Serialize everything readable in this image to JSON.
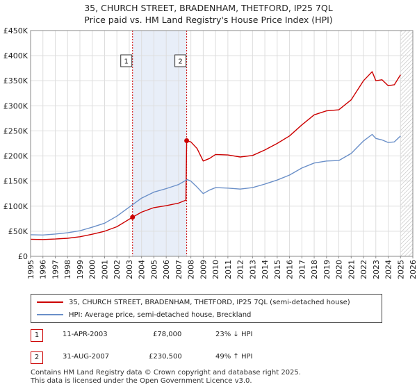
{
  "title_line1": "35, CHURCH STREET, BRADENHAM, THETFORD, IP25 7QL",
  "title_line2": "Price paid vs. HM Land Registry's House Price Index (HPI)",
  "legend": {
    "red_label": "35, CHURCH STREET, BRADENHAM, THETFORD, IP25 7QL (semi-detached house)",
    "blue_label": "HPI: Average price, semi-detached house, Breckland"
  },
  "transactions": [
    {
      "num": "1",
      "date": "11-APR-2003",
      "price": "£78,000",
      "hpi": "23% ↓ HPI"
    },
    {
      "num": "2",
      "date": "31-AUG-2007",
      "price": "£230,500",
      "hpi": "49% ↑ HPI"
    }
  ],
  "footer_line1": "Contains HM Land Registry data © Crown copyright and database right 2025.",
  "footer_line2": "This data is licensed under the Open Government Licence v3.0.",
  "colors": {
    "red": "#cc0000",
    "blue": "#6a8fc8",
    "shade": "#e8eef8",
    "grid": "#dddddd"
  },
  "chart_data": {
    "type": "line",
    "ylim": [
      0,
      450000
    ],
    "xlim": [
      1995,
      2026
    ],
    "y_ticks": [
      0,
      50000,
      100000,
      150000,
      200000,
      250000,
      300000,
      350000,
      400000,
      450000
    ],
    "y_tick_labels": [
      "£0",
      "£50K",
      "£100K",
      "£150K",
      "£200K",
      "£250K",
      "£300K",
      "£350K",
      "£400K",
      "£450K"
    ],
    "x_ticks": [
      "1995",
      "1996",
      "1997",
      "1998",
      "1999",
      "2000",
      "2001",
      "2002",
      "2003",
      "2004",
      "2005",
      "2006",
      "2007",
      "2008",
      "2009",
      "2010",
      "2011",
      "2012",
      "2013",
      "2014",
      "2015",
      "2016",
      "2017",
      "2018",
      "2019",
      "2020",
      "2021",
      "2022",
      "2023",
      "2024",
      "2025",
      "2026"
    ],
    "shaded_region": [
      2003.27,
      2007.66
    ],
    "hatched_from": 2025.0,
    "markers": [
      {
        "label": "1",
        "x": 2003.27,
        "y": 78000
      },
      {
        "label": "2",
        "x": 2007.66,
        "y": 230500
      }
    ],
    "series": [
      {
        "name": "35, CHURCH STREET, BRADENHAM, THETFORD, IP25 7QL (semi-detached house)",
        "color": "#cc0000",
        "points": [
          [
            1995.0,
            34000
          ],
          [
            1996.0,
            33500
          ],
          [
            1997.0,
            34500
          ],
          [
            1998.0,
            36000
          ],
          [
            1999.0,
            39000
          ],
          [
            2000.0,
            44000
          ],
          [
            2001.0,
            50000
          ],
          [
            2002.0,
            59000
          ],
          [
            2003.27,
            78000
          ],
          [
            2004.0,
            88000
          ],
          [
            2005.0,
            97000
          ],
          [
            2006.0,
            101000
          ],
          [
            2007.0,
            106000
          ],
          [
            2007.6,
            112000
          ],
          [
            2007.66,
            230500
          ],
          [
            2008.0,
            228000
          ],
          [
            2008.5,
            215000
          ],
          [
            2009.0,
            190000
          ],
          [
            2009.5,
            195000
          ],
          [
            2010.0,
            203000
          ],
          [
            2011.0,
            202000
          ],
          [
            2012.0,
            198000
          ],
          [
            2013.0,
            201000
          ],
          [
            2014.0,
            212000
          ],
          [
            2015.0,
            225000
          ],
          [
            2016.0,
            240000
          ],
          [
            2017.0,
            262000
          ],
          [
            2018.0,
            282000
          ],
          [
            2019.0,
            290000
          ],
          [
            2020.0,
            292000
          ],
          [
            2021.0,
            312000
          ],
          [
            2022.0,
            350000
          ],
          [
            2022.7,
            368000
          ],
          [
            2023.0,
            350000
          ],
          [
            2023.5,
            352000
          ],
          [
            2024.0,
            340000
          ],
          [
            2024.5,
            342000
          ],
          [
            2025.0,
            362000
          ]
        ]
      },
      {
        "name": "HPI: Average price, semi-detached house, Breckland",
        "color": "#6a8fc8",
        "points": [
          [
            1995.0,
            43000
          ],
          [
            1996.0,
            42500
          ],
          [
            1997.0,
            44500
          ],
          [
            1998.0,
            47000
          ],
          [
            1999.0,
            51000
          ],
          [
            2000.0,
            58000
          ],
          [
            2001.0,
            66000
          ],
          [
            2002.0,
            80000
          ],
          [
            2003.0,
            98000
          ],
          [
            2004.0,
            116000
          ],
          [
            2005.0,
            128000
          ],
          [
            2006.0,
            135000
          ],
          [
            2007.0,
            143000
          ],
          [
            2007.7,
            153000
          ],
          [
            2008.0,
            150000
          ],
          [
            2008.5,
            138000
          ],
          [
            2009.0,
            125000
          ],
          [
            2009.5,
            132000
          ],
          [
            2010.0,
            137000
          ],
          [
            2011.0,
            136000
          ],
          [
            2012.0,
            134000
          ],
          [
            2013.0,
            137000
          ],
          [
            2014.0,
            144000
          ],
          [
            2015.0,
            152000
          ],
          [
            2016.0,
            162000
          ],
          [
            2017.0,
            176000
          ],
          [
            2018.0,
            186000
          ],
          [
            2019.0,
            190000
          ],
          [
            2020.0,
            191000
          ],
          [
            2021.0,
            205000
          ],
          [
            2022.0,
            230000
          ],
          [
            2022.7,
            243000
          ],
          [
            2023.0,
            235000
          ],
          [
            2023.5,
            232000
          ],
          [
            2024.0,
            227000
          ],
          [
            2024.5,
            228000
          ],
          [
            2025.0,
            240000
          ]
        ]
      }
    ]
  }
}
